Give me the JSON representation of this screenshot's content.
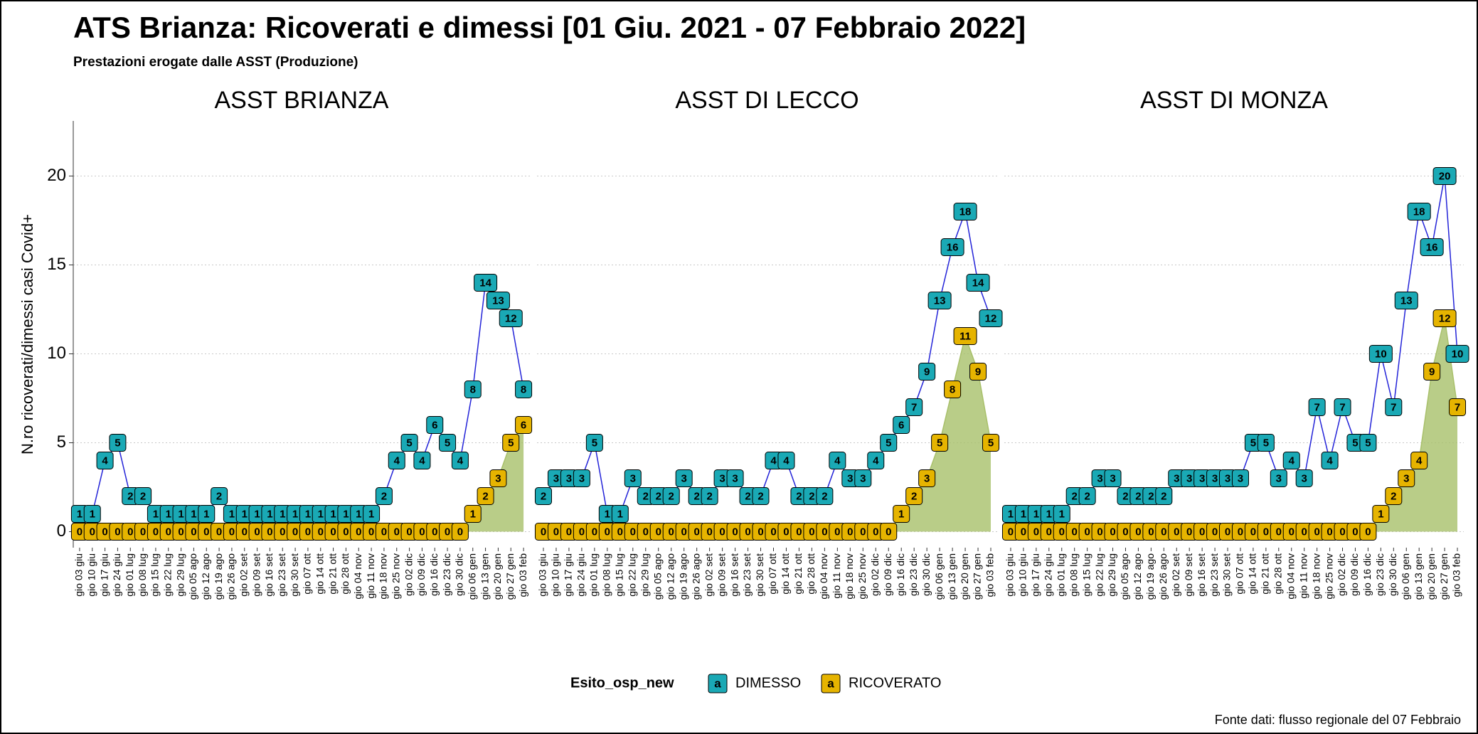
{
  "title": "ATS Brianza: Ricoverati e dimessi [01 Giu. 2021 - 07 Febbraio 2022]",
  "subtitle": "Prestazioni erogate dalle ASST (Produzione)",
  "y_label": "N.ro ricoverati/dimessi casi Covid+",
  "legend_title": "Esito_osp_new",
  "legend_glyph": "a",
  "source": "Fonte dati: flusso regionale del 07 Febbraio",
  "chart_data": [
    {
      "type": "line",
      "title": "ASST BRIANZA",
      "categories": [
        "gio 03 giu",
        "gio 10 giu",
        "gio 17 giu",
        "gio 24 giu",
        "gio 01 lug",
        "gio 08 lug",
        "gio 15 lug",
        "gio 22 lug",
        "gio 29 lug",
        "gio 05 ago",
        "gio 12 ago",
        "gio 19 ago",
        "gio 26 ago",
        "gio 02 set",
        "gio 09 set",
        "gio 16 set",
        "gio 23 set",
        "gio 30 set",
        "gio 07 ott",
        "gio 14 ott",
        "gio 21 ott",
        "gio 28 ott",
        "gio 04 nov",
        "gio 11 nov",
        "gio 18 nov",
        "gio 25 nov",
        "gio 02 dic",
        "gio 09 dic",
        "gio 16 dic",
        "gio 23 dic",
        "gio 30 dic",
        "gio 06 gen",
        "gio 13 gen",
        "gio 20 gen",
        "gio 27 gen",
        "gio 03 feb"
      ],
      "series": [
        {
          "name": "RICOVERATO",
          "color": "#e6b400",
          "line_color": "#a8c06a",
          "values": [
            0,
            0,
            0,
            0,
            0,
            0,
            0,
            0,
            0,
            0,
            0,
            0,
            0,
            0,
            0,
            0,
            0,
            0,
            0,
            0,
            0,
            0,
            0,
            0,
            0,
            0,
            0,
            0,
            0,
            0,
            0,
            1,
            2,
            3,
            5,
            6
          ]
        },
        {
          "name": "DIMESSO",
          "color": "#1aa9b5",
          "line_color": "#2323d8",
          "values": [
            1,
            1,
            4,
            5,
            2,
            2,
            1,
            1,
            1,
            1,
            1,
            2,
            1,
            1,
            1,
            1,
            1,
            1,
            1,
            1,
            1,
            1,
            1,
            1,
            2,
            4,
            5,
            4,
            6,
            5,
            4,
            8,
            14,
            13,
            12,
            8
          ]
        }
      ],
      "ylim": [
        -0.9,
        23.1
      ],
      "yticks": [
        0,
        5,
        10,
        15,
        20
      ],
      "grid": true
    },
    {
      "type": "line",
      "title": "ASST DI LECCO",
      "categories": [
        "gio 03 giu",
        "gio 10 giu",
        "gio 17 giu",
        "gio 24 giu",
        "gio 01 lug",
        "gio 08 lug",
        "gio 15 lug",
        "gio 22 lug",
        "gio 29 lug",
        "gio 05 ago",
        "gio 12 ago",
        "gio 19 ago",
        "gio 26 ago",
        "gio 02 set",
        "gio 09 set",
        "gio 16 set",
        "gio 23 set",
        "gio 30 set",
        "gio 07 ott",
        "gio 14 ott",
        "gio 21 ott",
        "gio 28 ott",
        "gio 04 nov",
        "gio 11 nov",
        "gio 18 nov",
        "gio 25 nov",
        "gio 02 dic",
        "gio 09 dic",
        "gio 16 dic",
        "gio 23 dic",
        "gio 30 dic",
        "gio 06 gen",
        "gio 13 gen",
        "gio 20 gen",
        "gio 27 gen",
        "gio 03 feb"
      ],
      "series": [
        {
          "name": "RICOVERATO",
          "color": "#e6b400",
          "line_color": "#a8c06a",
          "values": [
            0,
            0,
            0,
            0,
            0,
            0,
            0,
            0,
            0,
            0,
            0,
            0,
            0,
            0,
            0,
            0,
            0,
            0,
            0,
            0,
            0,
            0,
            0,
            0,
            0,
            0,
            0,
            0,
            1,
            2,
            3,
            5,
            8,
            11,
            9,
            5
          ]
        },
        {
          "name": "DIMESSO",
          "color": "#1aa9b5",
          "line_color": "#2323d8",
          "values": [
            2,
            3,
            3,
            3,
            5,
            1,
            1,
            3,
            2,
            2,
            2,
            3,
            2,
            2,
            3,
            3,
            2,
            2,
            4,
            4,
            2,
            2,
            2,
            4,
            3,
            3,
            4,
            5,
            6,
            7,
            9,
            13,
            16,
            18,
            14,
            12
          ]
        }
      ],
      "ylim": [
        -0.9,
        23.1
      ],
      "yticks": [
        0,
        5,
        10,
        15,
        20
      ],
      "grid": true
    },
    {
      "type": "line",
      "title": "ASST DI MONZA",
      "categories": [
        "gio 03 giu",
        "gio 10 giu",
        "gio 17 giu",
        "gio 24 giu",
        "gio 01 lug",
        "gio 08 lug",
        "gio 15 lug",
        "gio 22 lug",
        "gio 29 lug",
        "gio 05 ago",
        "gio 12 ago",
        "gio 19 ago",
        "gio 26 ago",
        "gio 02 set",
        "gio 09 set",
        "gio 16 set",
        "gio 23 set",
        "gio 30 set",
        "gio 07 ott",
        "gio 14 ott",
        "gio 21 ott",
        "gio 28 ott",
        "gio 04 nov",
        "gio 11 nov",
        "gio 18 nov",
        "gio 25 nov",
        "gio 02 dic",
        "gio 09 dic",
        "gio 16 dic",
        "gio 23 dic",
        "gio 30 dic",
        "gio 06 gen",
        "gio 13 gen",
        "gio 20 gen",
        "gio 27 gen",
        "gio 03 feb"
      ],
      "series": [
        {
          "name": "RICOVERATO",
          "color": "#e6b400",
          "line_color": "#a8c06a",
          "values": [
            0,
            0,
            0,
            0,
            0,
            0,
            0,
            0,
            0,
            0,
            0,
            0,
            0,
            0,
            0,
            0,
            0,
            0,
            0,
            0,
            0,
            0,
            0,
            0,
            0,
            0,
            0,
            0,
            0,
            1,
            2,
            3,
            4,
            9,
            12,
            7
          ]
        },
        {
          "name": "DIMESSO",
          "color": "#1aa9b5",
          "line_color": "#2323d8",
          "values": [
            1,
            1,
            1,
            1,
            1,
            2,
            2,
            3,
            3,
            2,
            2,
            2,
            2,
            3,
            3,
            3,
            3,
            3,
            3,
            5,
            5,
            3,
            4,
            3,
            7,
            4,
            7,
            5,
            5,
            10,
            7,
            13,
            18,
            16,
            20,
            10
          ]
        }
      ],
      "ylim": [
        -0.9,
        23.1
      ],
      "yticks": [
        0,
        5,
        10,
        15,
        20
      ],
      "grid": true
    }
  ]
}
